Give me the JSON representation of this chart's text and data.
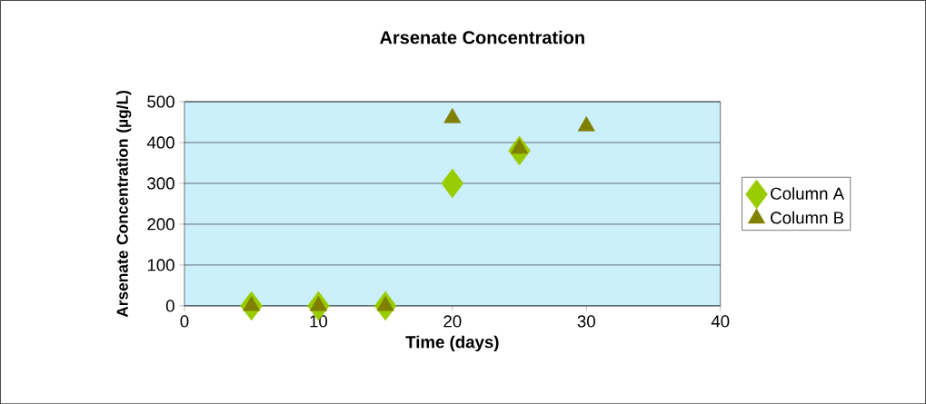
{
  "chart_data": {
    "type": "scatter",
    "title": "Arsenate Concentration",
    "xlabel": "Time (days)",
    "ylabel": "Arsenate Concentration (µg/L)",
    "series": [
      {
        "name": "Column A",
        "color": "#99cc00",
        "marker": "diamond",
        "x": [
          5,
          10,
          15,
          20,
          25
        ],
        "values": [
          0,
          0,
          0,
          300,
          380
        ]
      },
      {
        "name": "Column B",
        "color": "#808000",
        "marker": "triangle",
        "x": [
          5,
          10,
          15,
          20,
          25,
          30
        ],
        "values": [
          0,
          0,
          0,
          460,
          385,
          440
        ]
      }
    ],
    "xlim": [
      0,
      40
    ],
    "ylim": [
      0,
      500
    ],
    "xticks": [
      0,
      10,
      20,
      30,
      40
    ],
    "yticks": [
      0,
      100,
      200,
      300,
      400,
      500
    ],
    "grid": "y",
    "legend": "right"
  }
}
